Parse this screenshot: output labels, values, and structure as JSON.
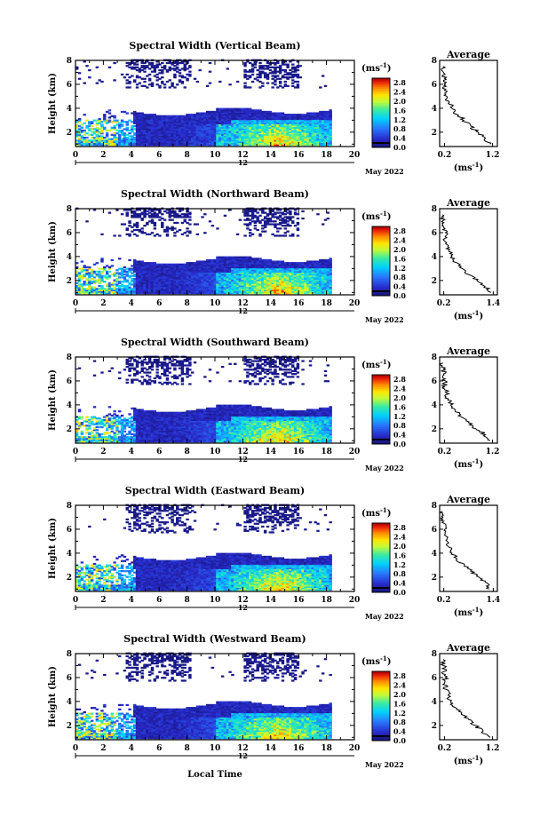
{
  "chart_data": [
    {
      "type": "heatmap",
      "title": "Spectral Width (Vertical Beam)",
      "ylabel": "Height (km)",
      "xlabel": "",
      "xlim": [
        0,
        20
      ],
      "ylim": [
        0.8,
        8
      ],
      "x_ticks": [
        0,
        2,
        4,
        6,
        8,
        10,
        12,
        14,
        16,
        18,
        20
      ],
      "y_ticks": [
        2,
        4,
        6,
        8
      ],
      "date_label": "12",
      "month_label": "May 2022",
      "colorbar": {
        "label": "(ms",
        "exponent": "-1",
        "suffix": ")",
        "ticks": [
          0.0,
          0.4,
          0.8,
          1.2,
          1.6,
          2.0,
          2.4,
          2.8
        ],
        "range": [
          0,
          3
        ]
      },
      "avg_profile": {
        "title": "Average",
        "xlabel": "(ms",
        "exponent": "-1",
        "suffix": ")",
        "x_ticks": [
          0.2,
          1.2
        ],
        "xlim": [
          0.1,
          1.3
        ],
        "heights": [
          1.0,
          1.5,
          2.0,
          2.5,
          3.0,
          3.5,
          4.0,
          4.5,
          5.0,
          5.5,
          6.0,
          6.5,
          7.0,
          7.5
        ],
        "values": [
          1.15,
          1.05,
          0.9,
          0.75,
          0.6,
          0.45,
          0.35,
          0.3,
          0.25,
          0.2,
          0.22,
          0.2,
          0.18,
          0.17
        ]
      }
    },
    {
      "type": "heatmap",
      "title": "Spectral Width (Northward Beam)",
      "ylabel": "Height (km)",
      "xlabel": "",
      "xlim": [
        0,
        20
      ],
      "ylim": [
        0.8,
        8
      ],
      "x_ticks": [
        0,
        2,
        4,
        6,
        8,
        10,
        12,
        14,
        16,
        18,
        20
      ],
      "y_ticks": [
        2,
        4,
        6,
        8
      ],
      "date_label": "12",
      "month_label": "May 2022",
      "colorbar": {
        "label": "(ms",
        "exponent": "-1",
        "suffix": ")",
        "ticks": [
          0.0,
          0.4,
          0.8,
          1.2,
          1.6,
          2.0,
          2.4,
          2.8
        ],
        "range": [
          0,
          3
        ]
      },
      "avg_profile": {
        "title": "Average",
        "xlabel": "(ms",
        "exponent": "-1",
        "suffix": ")",
        "x_ticks": [
          0.2,
          1.4
        ],
        "xlim": [
          0.1,
          1.5
        ],
        "heights": [
          1.0,
          1.5,
          2.0,
          2.5,
          3.0,
          3.5,
          4.0,
          4.5,
          5.0,
          5.5,
          6.0,
          6.5,
          7.0,
          7.5
        ],
        "values": [
          1.35,
          1.2,
          1.0,
          0.8,
          0.65,
          0.5,
          0.4,
          0.32,
          0.28,
          0.22,
          0.24,
          0.2,
          0.18,
          0.17
        ]
      }
    },
    {
      "type": "heatmap",
      "title": "Spectral Width (Southward Beam)",
      "ylabel": "Height (km)",
      "xlabel": "",
      "xlim": [
        0,
        20
      ],
      "ylim": [
        0.8,
        8
      ],
      "x_ticks": [
        0,
        2,
        4,
        6,
        8,
        10,
        12,
        14,
        16,
        18,
        20
      ],
      "y_ticks": [
        2,
        4,
        6,
        8
      ],
      "date_label": "12",
      "month_label": "May 2022",
      "colorbar": {
        "label": "(ms",
        "exponent": "-1",
        "suffix": ")",
        "ticks": [
          0.0,
          0.4,
          0.8,
          1.2,
          1.6,
          2.0,
          2.4,
          2.8
        ],
        "range": [
          0,
          3
        ]
      },
      "avg_profile": {
        "title": "Average",
        "xlabel": "(ms",
        "exponent": "-1",
        "suffix": ")",
        "x_ticks": [
          0.2,
          1.2
        ],
        "xlim": [
          0.1,
          1.3
        ],
        "heights": [
          1.0,
          1.5,
          2.0,
          2.5,
          3.0,
          3.5,
          4.0,
          4.5,
          5.0,
          5.5,
          6.0,
          6.5,
          7.0,
          7.5
        ],
        "values": [
          1.15,
          1.05,
          0.85,
          0.7,
          0.55,
          0.42,
          0.33,
          0.28,
          0.24,
          0.2,
          0.22,
          0.19,
          0.18,
          0.17
        ]
      }
    },
    {
      "type": "heatmap",
      "title": "Spectral Width (Eastward Beam)",
      "ylabel": "Height (km)",
      "xlabel": "",
      "xlim": [
        0,
        20
      ],
      "ylim": [
        0.8,
        8
      ],
      "x_ticks": [
        0,
        2,
        4,
        6,
        8,
        10,
        12,
        14,
        16,
        18,
        20
      ],
      "y_ticks": [
        2,
        4,
        6,
        8
      ],
      "date_label": "12",
      "month_label": "May 2022",
      "colorbar": {
        "label": "(ms",
        "exponent": "-1",
        "suffix": ")",
        "ticks": [
          0.0,
          0.4,
          0.8,
          1.2,
          1.6,
          2.0,
          2.4,
          2.8
        ],
        "range": [
          0,
          3
        ]
      },
      "avg_profile": {
        "title": "Average",
        "xlabel": "(ms",
        "exponent": "-1",
        "suffix": ")",
        "x_ticks": [
          0.2,
          1.4
        ],
        "xlim": [
          0.1,
          1.5
        ],
        "heights": [
          1.0,
          1.5,
          2.0,
          2.5,
          3.0,
          3.5,
          4.0,
          4.5,
          5.0,
          5.5,
          6.0,
          6.5,
          7.0,
          7.5
        ],
        "values": [
          1.3,
          1.25,
          1.05,
          0.85,
          0.7,
          0.52,
          0.4,
          0.33,
          0.28,
          0.22,
          0.23,
          0.2,
          0.18,
          0.17
        ]
      }
    },
    {
      "type": "heatmap",
      "title": "Spectral Width (Westward Beam)",
      "ylabel": "Height (km)",
      "xlabel": "Local Time",
      "xlim": [
        0,
        20
      ],
      "ylim": [
        0.8,
        8
      ],
      "x_ticks": [
        0,
        2,
        4,
        6,
        8,
        10,
        12,
        14,
        16,
        18,
        20
      ],
      "y_ticks": [
        2,
        4,
        6,
        8
      ],
      "date_label": "12",
      "month_label": "May 2022",
      "colorbar": {
        "label": "(ms",
        "exponent": "-1",
        "suffix": ")",
        "ticks": [
          0.0,
          0.4,
          0.8,
          1.2,
          1.6,
          2.0,
          2.4,
          2.8
        ],
        "range": [
          0,
          3
        ]
      },
      "avg_profile": {
        "title": "Average",
        "xlabel": "(ms",
        "exponent": "-1",
        "suffix": ")",
        "x_ticks": [
          0.2,
          1.2
        ],
        "xlim": [
          0.1,
          1.3
        ],
        "heights": [
          1.0,
          1.5,
          2.0,
          2.5,
          3.0,
          3.5,
          4.0,
          4.5,
          5.0,
          5.5,
          6.0,
          6.5,
          7.0,
          7.5
        ],
        "values": [
          1.15,
          1.0,
          0.85,
          0.7,
          0.55,
          0.42,
          0.33,
          0.28,
          0.24,
          0.2,
          0.22,
          0.19,
          0.18,
          0.17
        ]
      }
    }
  ]
}
